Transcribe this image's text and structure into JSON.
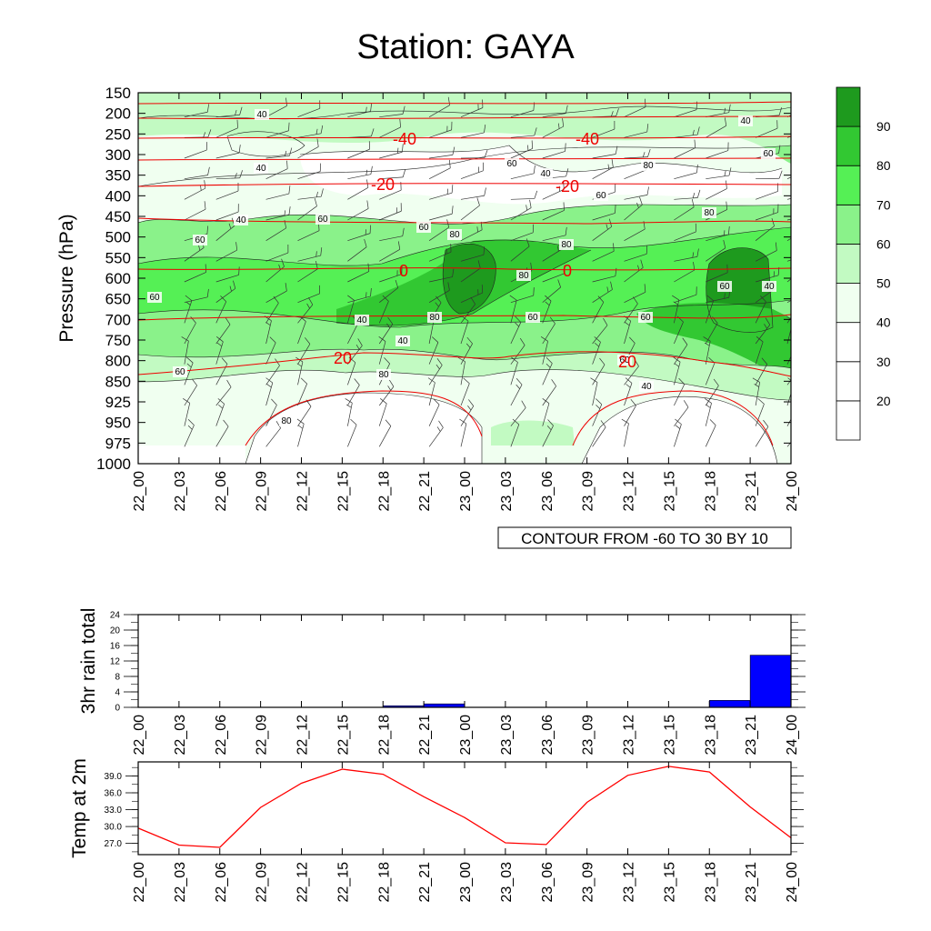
{
  "title": "Station: GAYA",
  "time_labels": [
    "22_00",
    "22_03",
    "22_06",
    "22_09",
    "22_12",
    "22_15",
    "22_18",
    "22_21",
    "23_00",
    "23_03",
    "23_06",
    "23_09",
    "23_12",
    "23_15",
    "23_18",
    "23_21",
    "24_00"
  ],
  "cross_section": {
    "ylabel": "Pressure (hPa)",
    "pressure_levels": [
      150,
      200,
      250,
      300,
      350,
      400,
      450,
      500,
      550,
      600,
      650,
      700,
      750,
      800,
      850,
      925,
      950,
      975,
      1000
    ],
    "contour_note": "CONTOUR FROM -60 TO 30 BY 10",
    "colorbar": {
      "labels": [
        20,
        30,
        40,
        50,
        60,
        70,
        80,
        90
      ],
      "colors": [
        "#ffffff",
        "#ffffff",
        "#ffffff",
        "#f0fff0",
        "#c2fac2",
        "#8af28a",
        "#55f055",
        "#32c832",
        "#1e9a1e"
      ]
    },
    "temperature_isotherm_labels": [
      "-40",
      "-40",
      "-20",
      "-20",
      "0",
      "0",
      "20",
      "20"
    ],
    "humidity_contour_labels": [
      "40",
      "40",
      "40",
      "60",
      "60",
      "60",
      "80",
      "80",
      "80",
      "60",
      "40",
      "60",
      "80",
      "80",
      "40",
      "60",
      "60",
      "40",
      "40",
      "60",
      "80",
      "60",
      "40",
      "60",
      "80",
      "80",
      "60",
      "40",
      "60"
    ]
  },
  "chart_data": [
    {
      "type": "heatmap",
      "title": "Station: GAYA",
      "ylabel": "Pressure (hPa)",
      "x": [
        "22_00",
        "22_03",
        "22_06",
        "22_09",
        "22_12",
        "22_15",
        "22_18",
        "22_21",
        "23_00",
        "23_03",
        "23_06",
        "23_09",
        "23_12",
        "23_15",
        "23_18",
        "23_21",
        "24_00"
      ],
      "y": [
        150,
        200,
        250,
        300,
        350,
        400,
        450,
        500,
        550,
        600,
        650,
        700,
        750,
        800,
        850,
        925,
        950,
        975,
        1000
      ],
      "contour_range": [
        -60,
        30,
        10
      ],
      "temperature_isotherms": [
        -40,
        -20,
        0,
        20
      ]
    },
    {
      "type": "bar",
      "ylabel": "3hr rain total",
      "categories": [
        "22_00",
        "22_03",
        "22_06",
        "22_09",
        "22_12",
        "22_15",
        "22_18",
        "22_21",
        "23_00",
        "23_03",
        "23_06",
        "23_09",
        "23_12",
        "23_15",
        "23_18",
        "23_21",
        "24_00"
      ],
      "values": [
        0,
        0,
        0,
        0,
        0,
        0,
        0,
        0.4,
        0.9,
        0,
        0,
        0,
        0,
        0,
        0,
        1.8,
        13.5
      ],
      "yticks": [
        0,
        4,
        8,
        12,
        16,
        20,
        24
      ],
      "ylim": [
        0,
        24
      ],
      "color": "#0000ff"
    },
    {
      "type": "line",
      "ylabel": "Temp at 2m",
      "categories": [
        "22_00",
        "22_03",
        "22_06",
        "22_09",
        "22_12",
        "22_15",
        "22_18",
        "22_21",
        "23_00",
        "23_03",
        "23_06",
        "23_09",
        "23_12",
        "23_15",
        "23_18",
        "23_21",
        "24_00"
      ],
      "values": [
        29.7,
        26.7,
        26.3,
        33.4,
        37.7,
        40.2,
        39.3,
        35.3,
        31.6,
        27.1,
        26.8,
        34.3,
        39.1,
        40.7,
        39.7,
        33.5,
        28.0
      ],
      "yticks": [
        27.0,
        30.0,
        33.0,
        36.0,
        39.0
      ],
      "ylim": [
        25.0,
        41.5
      ],
      "color": "#ff0000"
    }
  ]
}
